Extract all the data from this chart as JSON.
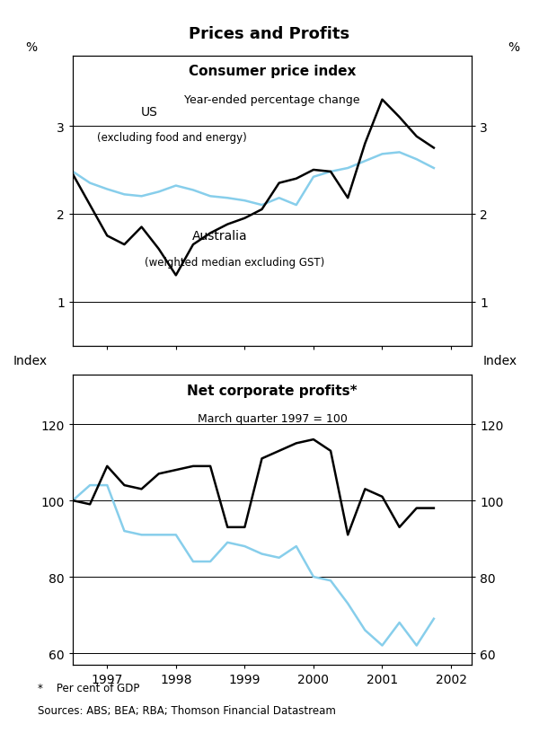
{
  "title": "Prices and Profits",
  "top_title1": "Consumer price index",
  "top_title2": "Year-ended percentage change",
  "bottom_title1": "Net corporate profits*",
  "bottom_title2": "March quarter 1997 = 100",
  "footnote": "*    Per cent of GDP",
  "source": "Sources: ABS; BEA; RBA; Thomson Financial Datastream",
  "cpi_xlim": [
    1996.5,
    2002.3
  ],
  "cpi_ylim": [
    0.5,
    3.8
  ],
  "cpi_yticks": [
    1,
    2,
    3
  ],
  "profits_xlim": [
    1996.5,
    2002.3
  ],
  "profits_ylim": [
    57,
    133
  ],
  "profits_yticks": [
    60,
    80,
    100,
    120
  ],
  "us_x": [
    1996.5,
    1996.75,
    1997.0,
    1997.25,
    1997.5,
    1997.75,
    1998.0,
    1998.25,
    1998.5,
    1998.75,
    1999.0,
    1999.25,
    1999.5,
    1999.75,
    2000.0,
    2000.25,
    2000.5,
    2000.75,
    2001.0,
    2001.25,
    2001.5,
    2001.75
  ],
  "us_y": [
    2.48,
    2.35,
    2.28,
    2.22,
    2.2,
    2.25,
    2.32,
    2.27,
    2.2,
    2.18,
    2.15,
    2.1,
    2.18,
    2.1,
    2.42,
    2.48,
    2.52,
    2.6,
    2.68,
    2.7,
    2.62,
    2.52
  ],
  "aus_x": [
    1996.5,
    1996.75,
    1997.0,
    1997.25,
    1997.5,
    1997.75,
    1998.0,
    1998.25,
    1998.5,
    1998.75,
    1999.0,
    1999.25,
    1999.5,
    1999.75,
    2000.0,
    2000.25,
    2000.5,
    2000.75,
    2001.0,
    2001.25,
    2001.5,
    2001.75
  ],
  "aus_y": [
    2.45,
    2.1,
    1.75,
    1.65,
    1.85,
    1.6,
    1.3,
    1.65,
    1.78,
    1.88,
    1.95,
    2.05,
    2.35,
    2.4,
    2.5,
    2.48,
    2.18,
    2.8,
    3.3,
    3.1,
    2.88,
    2.75
  ],
  "aus_profits_x": [
    1996.5,
    1996.75,
    1997.0,
    1997.25,
    1997.5,
    1997.75,
    1998.0,
    1998.25,
    1998.5,
    1998.75,
    1999.0,
    1999.25,
    1999.5,
    1999.75,
    2000.0,
    2000.25,
    2000.5,
    2000.75,
    2001.0,
    2001.25,
    2001.5,
    2001.75
  ],
  "aus_profits_y": [
    100,
    99,
    109,
    104,
    103,
    107,
    108,
    109,
    109,
    93,
    93,
    111,
    113,
    115,
    116,
    113,
    91,
    103,
    101,
    93,
    98,
    98
  ],
  "us_profits_x": [
    1996.5,
    1996.75,
    1997.0,
    1997.25,
    1997.5,
    1997.75,
    1998.0,
    1998.25,
    1998.5,
    1998.75,
    1999.0,
    1999.25,
    1999.5,
    1999.75,
    2000.0,
    2000.25,
    2000.5,
    2000.75,
    2001.0,
    2001.25,
    2001.5,
    2001.75
  ],
  "us_profits_y": [
    100,
    104,
    104,
    92,
    91,
    91,
    91,
    84,
    84,
    89,
    88,
    86,
    85,
    88,
    80,
    79,
    73,
    66,
    62,
    68,
    62,
    69
  ],
  "xticks": [
    1997,
    1998,
    1999,
    2000,
    2001,
    2002
  ],
  "xticklabels": [
    "1997",
    "1998",
    "1999",
    "2000",
    "2001",
    "2002"
  ],
  "line_color_black": "#000000",
  "line_color_blue": "#87CEEB",
  "line_width": 1.8,
  "background_color": "#ffffff"
}
